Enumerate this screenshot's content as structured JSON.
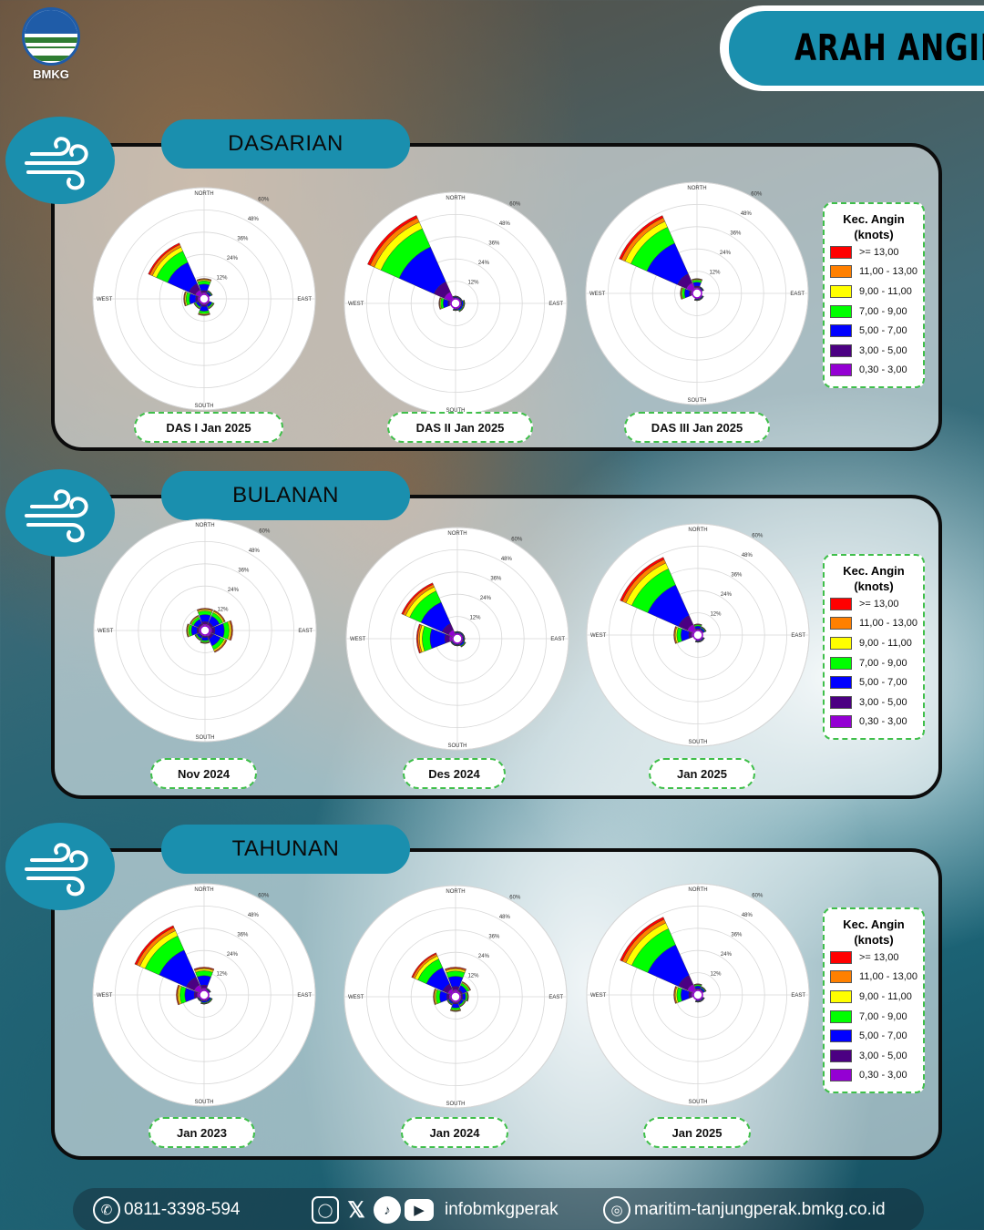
{
  "header": {
    "logo_text": "BMKG",
    "title": "ARAH ANGIN"
  },
  "rose_labels": {
    "north": "NORTH",
    "south": "SOUTH",
    "east": "EAST",
    "west": "WEST",
    "rings": [
      "12%",
      "24%",
      "36%",
      "48%",
      "60%"
    ]
  },
  "legend": {
    "title_line1": "Kec. Angin",
    "title_line2": "(knots)",
    "items": [
      {
        "label": ">= 13,00",
        "color": "#ff0000"
      },
      {
        "label": "11,00 - 13,00",
        "color": "#ff8000"
      },
      {
        "label": "9,00 - 11,00",
        "color": "#ffff00"
      },
      {
        "label": "7,00 - 9,00",
        "color": "#00ff00"
      },
      {
        "label": "5,00 - 7,00",
        "color": "#0000ff"
      },
      {
        "label": "3,00 - 5,00",
        "color": "#4b0082"
      },
      {
        "label": "0,30 - 3,00",
        "color": "#9400d3"
      }
    ]
  },
  "sections": [
    {
      "name": "DASARIAN",
      "charts": [
        {
          "label": "DAS I Jan 2025",
          "dirs": {
            "NW": 33,
            "N": 11,
            "NE": 5,
            "W": 11,
            "SW": 6,
            "S": 9,
            "SE": 6
          }
        },
        {
          "label": "DAS II Jan 2025",
          "dirs": {
            "NW": 52,
            "N": 4,
            "NE": 3,
            "E": 5,
            "W": 9,
            "SE": 5,
            "S": 3
          }
        },
        {
          "label": "DAS III Jan 2025",
          "dirs": {
            "NW": 46,
            "N": 8,
            "NE": 4,
            "W": 9,
            "S": 3,
            "SE": 2
          }
        }
      ]
    },
    {
      "name": "BULANAN",
      "charts": [
        {
          "label": "Nov 2024",
          "dirs": {
            "N": 12,
            "NE": 12,
            "E": 15,
            "SE": 13,
            "S": 7,
            "SW": 6,
            "W": 10,
            "NW": 9
          }
        },
        {
          "label": "Des 2024",
          "dirs": {
            "NW": 33,
            "W": 22,
            "SW": 4,
            "S": 3,
            "SE": 5,
            "E": 4,
            "NE": 4,
            "N": 2
          }
        },
        {
          "label": "Jan 2025",
          "dirs": {
            "NW": 46,
            "N": 6,
            "NE": 5,
            "W": 13,
            "SE": 3,
            "S": 3
          }
        }
      ]
    },
    {
      "name": "TAHUNAN",
      "charts": [
        {
          "label": "Jan 2023",
          "dirs": {
            "NW": 41,
            "N": 15,
            "NE": 3,
            "W": 15,
            "SW": 4,
            "S": 5,
            "SE": 5
          }
        },
        {
          "label": "Jan 2024",
          "dirs": {
            "NW": 26,
            "N": 16,
            "NE": 9,
            "E": 7,
            "W": 12,
            "S": 8,
            "SE": 6,
            "SW": 5
          }
        },
        {
          "label": "Jan 2025",
          "dirs": {
            "NW": 46,
            "N": 6,
            "NE": 5,
            "W": 13,
            "S": 3,
            "SE": 3
          }
        }
      ]
    }
  ],
  "footer": {
    "phone": "0811-3398-594",
    "social_handle": "infobmkgperak",
    "website": "maritim-tanjungperak.bmkg.co.id",
    "icons": [
      "whatsapp-icon",
      "instagram-icon",
      "x-icon",
      "tiktok-icon",
      "youtube-icon",
      "globe-icon"
    ]
  }
}
